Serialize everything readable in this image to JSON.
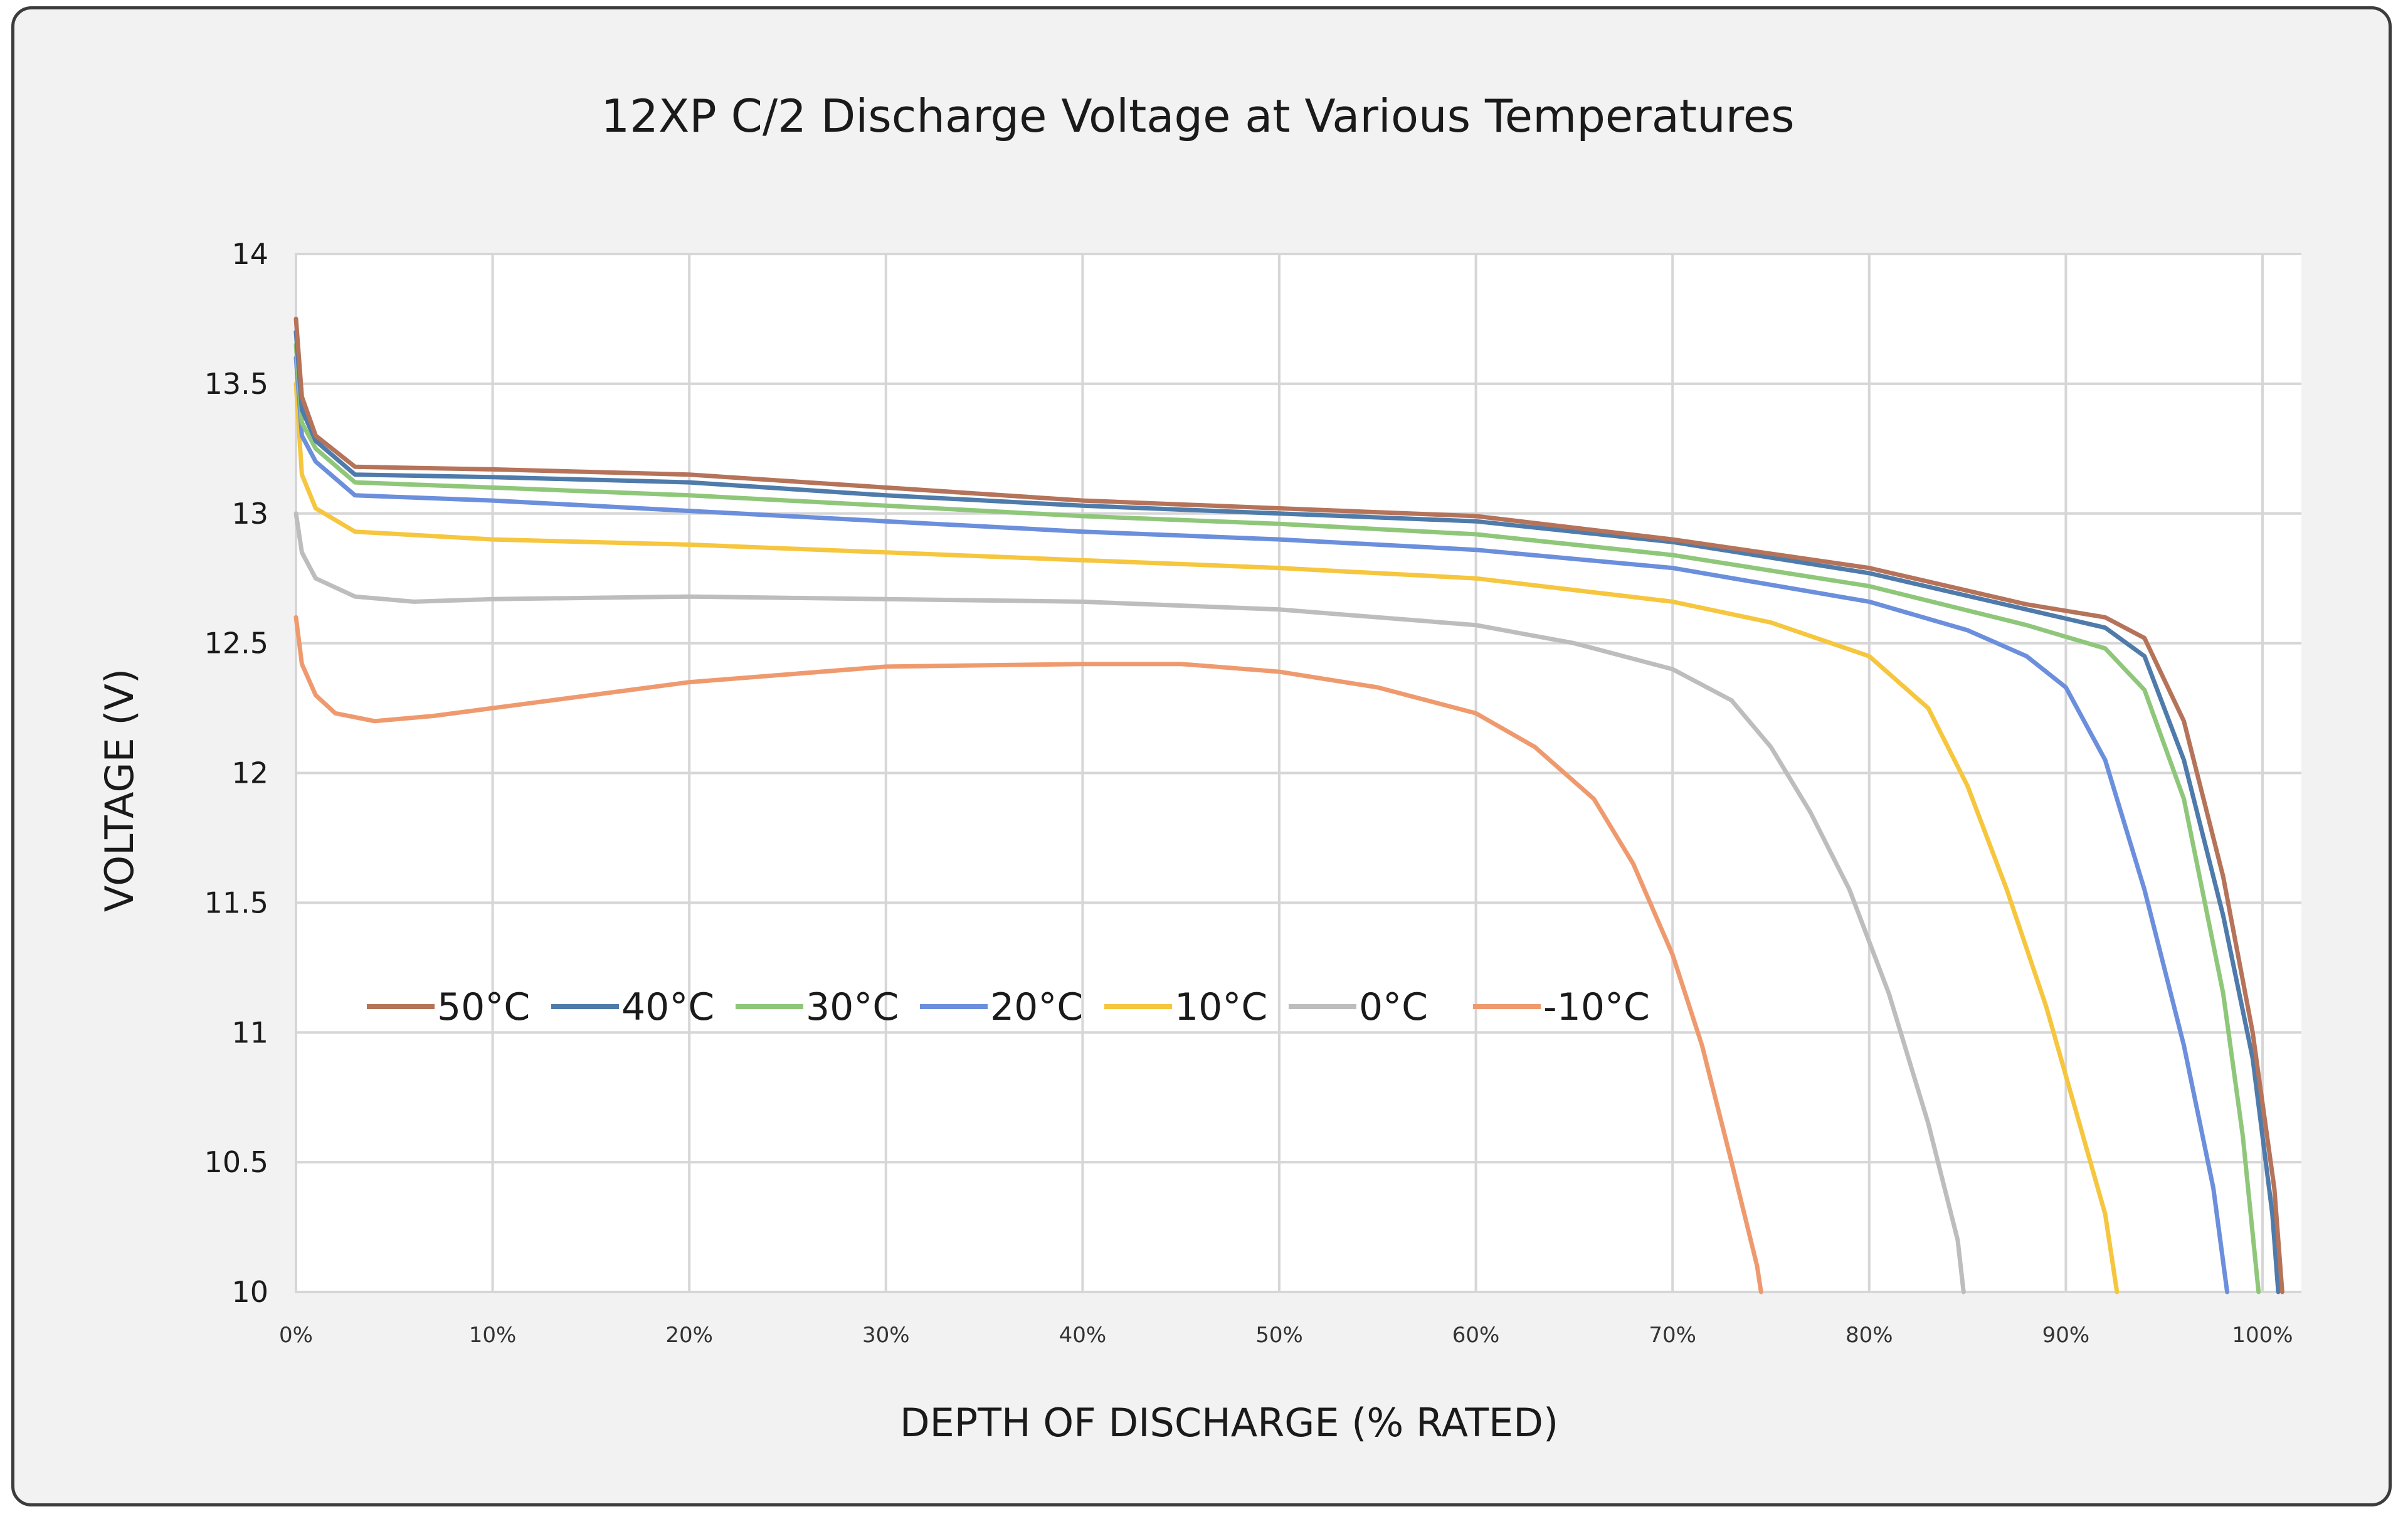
{
  "chart_data": {
    "type": "line",
    "title": "12XP C/2 Discharge Voltage at Various Temperatures",
    "xlabel": "DEPTH OF DISCHARGE (% RATED)",
    "ylabel": "VOLTAGE (V)",
    "xlim": [
      0,
      102
    ],
    "ylim": [
      10,
      14
    ],
    "x_ticks": [
      0,
      10,
      20,
      30,
      40,
      50,
      60,
      70,
      80,
      90,
      100
    ],
    "x_tick_labels": [
      "0%",
      "10%",
      "20%",
      "30%",
      "40%",
      "50%",
      "60%",
      "70%",
      "80%",
      "90%",
      "100%"
    ],
    "y_ticks": [
      10,
      10.5,
      11,
      11.5,
      12,
      12.5,
      13,
      13.5,
      14
    ],
    "y_tick_labels": [
      "10",
      "10.5",
      "11",
      "11.5",
      "12",
      "12.5",
      "13",
      "13.5",
      "14"
    ],
    "grid": true,
    "legend_position": "lower-left inside plot",
    "series": [
      {
        "name": "50°C",
        "color": "#b5735a",
        "points": [
          [
            0,
            13.75
          ],
          [
            0.3,
            13.45
          ],
          [
            1,
            13.3
          ],
          [
            3,
            13.18
          ],
          [
            10,
            13.17
          ],
          [
            20,
            13.15
          ],
          [
            30,
            13.1
          ],
          [
            40,
            13.05
          ],
          [
            50,
            13.02
          ],
          [
            60,
            12.99
          ],
          [
            70,
            12.9
          ],
          [
            80,
            12.79
          ],
          [
            88,
            12.65
          ],
          [
            92,
            12.6
          ],
          [
            94,
            12.52
          ],
          [
            96,
            12.2
          ],
          [
            98,
            11.6
          ],
          [
            99.5,
            11.0
          ],
          [
            100.6,
            10.4
          ],
          [
            101,
            10
          ]
        ]
      },
      {
        "name": "40°C",
        "color": "#4f7bab",
        "points": [
          [
            0,
            13.7
          ],
          [
            0.3,
            13.4
          ],
          [
            1,
            13.28
          ],
          [
            3,
            13.15
          ],
          [
            10,
            13.14
          ],
          [
            20,
            13.12
          ],
          [
            30,
            13.07
          ],
          [
            40,
            13.03
          ],
          [
            50,
            13.0
          ],
          [
            60,
            12.97
          ],
          [
            70,
            12.89
          ],
          [
            80,
            12.77
          ],
          [
            88,
            12.63
          ],
          [
            92,
            12.56
          ],
          [
            94,
            12.45
          ],
          [
            96,
            12.05
          ],
          [
            98,
            11.45
          ],
          [
            99.5,
            10.9
          ],
          [
            100.5,
            10.3
          ],
          [
            100.8,
            10
          ]
        ]
      },
      {
        "name": "30°C",
        "color": "#8fc77a",
        "points": [
          [
            0,
            13.65
          ],
          [
            0.3,
            13.35
          ],
          [
            1,
            13.25
          ],
          [
            3,
            13.12
          ],
          [
            10,
            13.1
          ],
          [
            20,
            13.07
          ],
          [
            30,
            13.03
          ],
          [
            40,
            12.99
          ],
          [
            50,
            12.96
          ],
          [
            60,
            12.92
          ],
          [
            70,
            12.84
          ],
          [
            80,
            12.72
          ],
          [
            88,
            12.57
          ],
          [
            92,
            12.48
          ],
          [
            94,
            12.32
          ],
          [
            96,
            11.9
          ],
          [
            98,
            11.15
          ],
          [
            99,
            10.6
          ],
          [
            99.8,
            10
          ]
        ]
      },
      {
        "name": "20°C",
        "color": "#6b8fdc",
        "points": [
          [
            0,
            13.6
          ],
          [
            0.3,
            13.3
          ],
          [
            1,
            13.2
          ],
          [
            3,
            13.07
          ],
          [
            10,
            13.05
          ],
          [
            20,
            13.01
          ],
          [
            30,
            12.97
          ],
          [
            40,
            12.93
          ],
          [
            50,
            12.9
          ],
          [
            60,
            12.86
          ],
          [
            70,
            12.79
          ],
          [
            80,
            12.66
          ],
          [
            85,
            12.55
          ],
          [
            88,
            12.45
          ],
          [
            90,
            12.33
          ],
          [
            92,
            12.05
          ],
          [
            94,
            11.55
          ],
          [
            96,
            10.95
          ],
          [
            97.5,
            10.4
          ],
          [
            98.2,
            10
          ]
        ]
      },
      {
        "name": "10°C",
        "color": "#f5c63e",
        "points": [
          [
            0,
            13.5
          ],
          [
            0.3,
            13.15
          ],
          [
            1,
            13.02
          ],
          [
            3,
            12.93
          ],
          [
            10,
            12.9
          ],
          [
            20,
            12.88
          ],
          [
            30,
            12.85
          ],
          [
            40,
            12.82
          ],
          [
            50,
            12.79
          ],
          [
            60,
            12.75
          ],
          [
            70,
            12.66
          ],
          [
            75,
            12.58
          ],
          [
            80,
            12.45
          ],
          [
            83,
            12.25
          ],
          [
            85,
            11.95
          ],
          [
            87,
            11.55
          ],
          [
            89,
            11.1
          ],
          [
            90.5,
            10.7
          ],
          [
            92,
            10.3
          ],
          [
            92.6,
            10
          ]
        ]
      },
      {
        "name": "0°C",
        "color": "#bdbdbd",
        "points": [
          [
            0,
            13.0
          ],
          [
            0.3,
            12.85
          ],
          [
            1,
            12.75
          ],
          [
            3,
            12.68
          ],
          [
            6,
            12.66
          ],
          [
            10,
            12.67
          ],
          [
            20,
            12.68
          ],
          [
            30,
            12.67
          ],
          [
            40,
            12.66
          ],
          [
            50,
            12.63
          ],
          [
            60,
            12.57
          ],
          [
            65,
            12.5
          ],
          [
            70,
            12.4
          ],
          [
            73,
            12.28
          ],
          [
            75,
            12.1
          ],
          [
            77,
            11.85
          ],
          [
            79,
            11.55
          ],
          [
            81,
            11.15
          ],
          [
            83,
            10.65
          ],
          [
            84.5,
            10.2
          ],
          [
            84.8,
            10
          ]
        ]
      },
      {
        "name": "-10°C",
        "color": "#ef9a6e",
        "points": [
          [
            0,
            12.6
          ],
          [
            0.3,
            12.42
          ],
          [
            1,
            12.3
          ],
          [
            2,
            12.23
          ],
          [
            4,
            12.2
          ],
          [
            7,
            12.22
          ],
          [
            12,
            12.27
          ],
          [
            20,
            12.35
          ],
          [
            30,
            12.41
          ],
          [
            40,
            12.42
          ],
          [
            45,
            12.42
          ],
          [
            50,
            12.39
          ],
          [
            55,
            12.33
          ],
          [
            60,
            12.23
          ],
          [
            63,
            12.1
          ],
          [
            66,
            11.9
          ],
          [
            68,
            11.65
          ],
          [
            70,
            11.3
          ],
          [
            71.5,
            10.95
          ],
          [
            73,
            10.5
          ],
          [
            74.3,
            10.1
          ],
          [
            74.5,
            10
          ]
        ]
      }
    ]
  }
}
